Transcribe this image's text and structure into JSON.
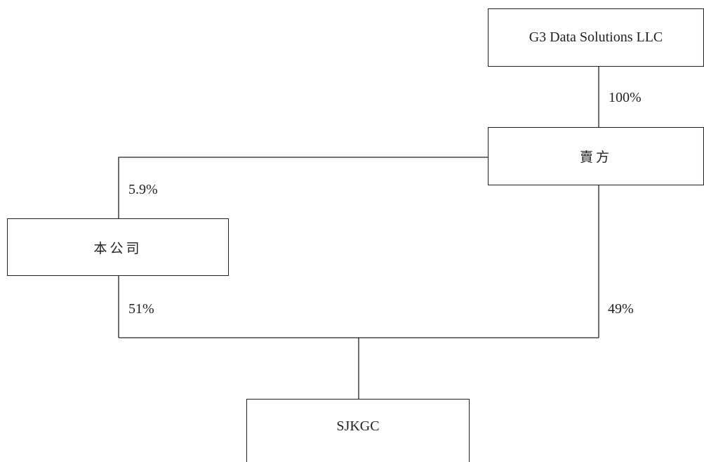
{
  "nodes": {
    "parent": "G3 Data Solutions LLC",
    "seller": "賣方",
    "company": "本公司",
    "target": "SJKGC"
  },
  "ownership": {
    "parent_to_seller": "100%",
    "seller_to_company": "5.9%",
    "company_to_target": "51%",
    "seller_to_target": "49%"
  }
}
